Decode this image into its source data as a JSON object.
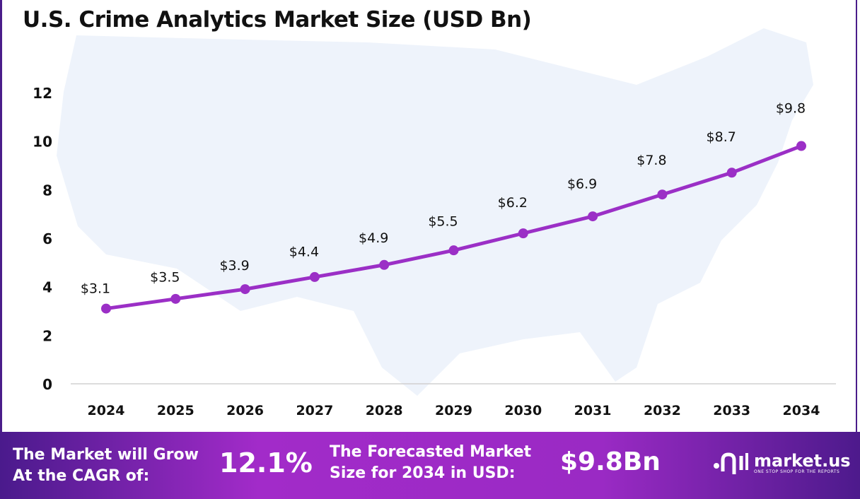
{
  "chart_data": {
    "type": "line",
    "title": "U.S. Crime Analytics Market Size (USD Bn)",
    "categories": [
      "2024",
      "2025",
      "2026",
      "2027",
      "2028",
      "2029",
      "2030",
      "2031",
      "2032",
      "2033",
      "2034"
    ],
    "series": [
      {
        "name": "Market Size",
        "values": [
          3.1,
          3.5,
          3.9,
          4.4,
          4.9,
          5.5,
          6.2,
          6.9,
          7.8,
          8.7,
          9.8
        ]
      }
    ],
    "data_labels": [
      "$3.1",
      "$3.5",
      "$3.9",
      "$4.4",
      "$4.9",
      "$5.5",
      "$6.2",
      "$6.9",
      "$7.8",
      "$8.7",
      "$9.8"
    ],
    "yticks": [
      0,
      2,
      4,
      6,
      8,
      10,
      12
    ],
    "ylim": [
      0,
      12
    ],
    "xlabel": "",
    "ylabel": "",
    "grid": false,
    "line_color": "#9b2fc6"
  },
  "footer": {
    "cagr_label_line1": "The Market will Grow",
    "cagr_label_line2": "At the CAGR of:",
    "cagr_value": "12.1%",
    "forecast_label_line1": "The Forecasted Market",
    "forecast_label_line2": "Size for 2034 in USD:",
    "forecast_value": "$9.8Bn",
    "brand_name": "market.us",
    "brand_tagline": "ONE STOP SHOP FOR THE REPORTS"
  }
}
